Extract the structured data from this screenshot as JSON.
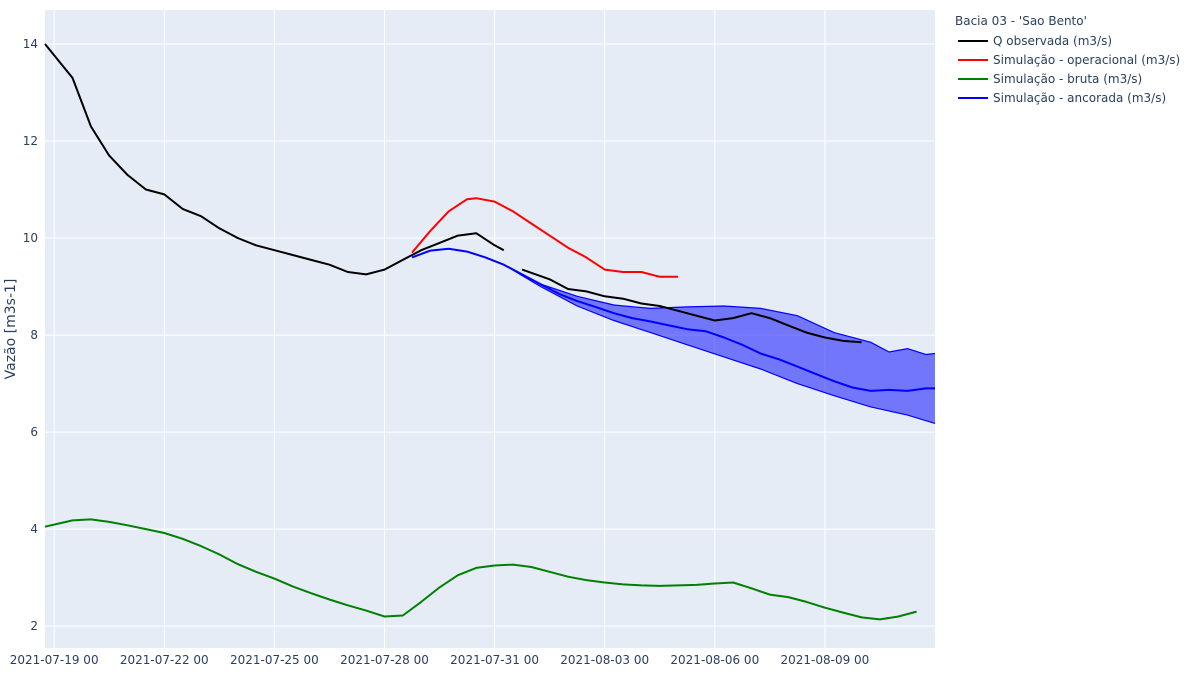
{
  "chart_data": {
    "type": "line",
    "ylabel": "Vazão [m3s-1]",
    "xlabel": "",
    "xlim": [
      "2021-07-18 18:00",
      "2021-08-12 00:00"
    ],
    "ylim": [
      1.55,
      14.7
    ],
    "x_ticks": [
      "2021-07-19 00",
      "2021-07-22 00",
      "2021-07-25 00",
      "2021-07-28 00",
      "2021-07-31 00",
      "2021-08-03 00",
      "2021-08-06 00",
      "2021-08-09 00"
    ],
    "y_ticks": [
      2,
      4,
      6,
      8,
      10,
      12,
      14
    ],
    "grid": true,
    "plot_background": "#E5ECF6",
    "legend": {
      "title": "Bacia 03 - 'Sao Bento'",
      "placement": "top-right outside"
    },
    "series": [
      {
        "name": "Q observada (m3/s)",
        "color": "#000000",
        "x": [
          "2021-07-18 18:00",
          "2021-07-19 12:00",
          "2021-07-20 00:00",
          "2021-07-20 12:00",
          "2021-07-21 00:00",
          "2021-07-21 12:00",
          "2021-07-22 00:00",
          "2021-07-22 12:00",
          "2021-07-23 00:00",
          "2021-07-23 12:00",
          "2021-07-24 00:00",
          "2021-07-24 12:00",
          "2021-07-25 00:00",
          "2021-07-25 12:00",
          "2021-07-26 00:00",
          "2021-07-26 12:00",
          "2021-07-27 00:00",
          "2021-07-27 12:00",
          "2021-07-28 00:00",
          "2021-07-28 12:00",
          "2021-07-29 00:00",
          "2021-07-29 12:00",
          "2021-07-30 00:00",
          "2021-07-30 12:00",
          "2021-07-31 00:00",
          "2021-07-31 06:00"
        ],
        "y": [
          14.0,
          13.3,
          12.3,
          11.7,
          11.3,
          11.0,
          10.9,
          10.6,
          10.45,
          10.2,
          10.0,
          9.85,
          9.75,
          9.65,
          9.55,
          9.45,
          9.3,
          9.25,
          9.35,
          9.55,
          9.75,
          9.9,
          10.05,
          10.1,
          9.85,
          9.75
        ]
      },
      {
        "name": "",
        "color": "#000000",
        "x": [
          "2021-07-31 18:00",
          "2021-08-01 12:00",
          "2021-08-02 00:00",
          "2021-08-02 12:00",
          "2021-08-03 00:00",
          "2021-08-03 12:00",
          "2021-08-04 00:00",
          "2021-08-04 12:00",
          "2021-08-05 00:00",
          "2021-08-05 12:00",
          "2021-08-06 00:00",
          "2021-08-06 12:00",
          "2021-08-07 00:00",
          "2021-08-07 12:00",
          "2021-08-08 00:00",
          "2021-08-08 12:00",
          "2021-08-09 00:00",
          "2021-08-09 12:00",
          "2021-08-10 00:00"
        ],
        "y": [
          9.35,
          9.15,
          8.95,
          8.9,
          8.8,
          8.75,
          8.65,
          8.6,
          8.5,
          8.4,
          8.3,
          8.35,
          8.45,
          8.35,
          8.2,
          8.05,
          7.95,
          7.88,
          7.85
        ]
      },
      {
        "name": "Simulação - operacional (m3/s)",
        "color": "#FF0000",
        "x": [
          "2021-07-28 18:00",
          "2021-07-29 06:00",
          "2021-07-29 18:00",
          "2021-07-30 06:00",
          "2021-07-30 12:00",
          "2021-07-31 00:00",
          "2021-07-31 12:00",
          "2021-08-01 00:00",
          "2021-08-01 12:00",
          "2021-08-02 00:00",
          "2021-08-02 12:00",
          "2021-08-03 00:00",
          "2021-08-03 12:00",
          "2021-08-04 00:00",
          "2021-08-04 12:00",
          "2021-08-05 00:00"
        ],
        "y": [
          9.7,
          10.15,
          10.55,
          10.8,
          10.82,
          10.75,
          10.55,
          10.3,
          10.05,
          9.8,
          9.6,
          9.35,
          9.3,
          9.3,
          9.2,
          9.2
        ]
      },
      {
        "name": "Simulação - bruta (m3/s)",
        "color": "#008000",
        "x": [
          "2021-07-18 18:00",
          "2021-07-19 12:00",
          "2021-07-20 00:00",
          "2021-07-20 12:00",
          "2021-07-21 00:00",
          "2021-07-21 12:00",
          "2021-07-22 00:00",
          "2021-07-22 12:00",
          "2021-07-23 00:00",
          "2021-07-23 12:00",
          "2021-07-24 00:00",
          "2021-07-24 12:00",
          "2021-07-25 00:00",
          "2021-07-25 12:00",
          "2021-07-26 00:00",
          "2021-07-26 12:00",
          "2021-07-27 00:00",
          "2021-07-27 12:00",
          "2021-07-28 00:00",
          "2021-07-28 12:00",
          "2021-07-29 00:00",
          "2021-07-29 12:00",
          "2021-07-30 00:00",
          "2021-07-30 12:00",
          "2021-07-31 00:00",
          "2021-07-31 12:00",
          "2021-08-01 00:00",
          "2021-08-01 12:00",
          "2021-08-02 00:00",
          "2021-08-02 12:00",
          "2021-08-03 00:00",
          "2021-08-03 12:00",
          "2021-08-04 00:00",
          "2021-08-04 12:00",
          "2021-08-05 00:00",
          "2021-08-05 12:00",
          "2021-08-06 00:00",
          "2021-08-06 12:00",
          "2021-08-07 00:00",
          "2021-08-07 12:00",
          "2021-08-08 00:00",
          "2021-08-08 12:00",
          "2021-08-09 00:00",
          "2021-08-09 12:00",
          "2021-08-10 00:00",
          "2021-08-10 12:00",
          "2021-08-11 00:00",
          "2021-08-11 12:00"
        ],
        "y": [
          4.05,
          4.18,
          4.2,
          4.15,
          4.08,
          4.0,
          3.92,
          3.8,
          3.65,
          3.48,
          3.28,
          3.12,
          2.98,
          2.82,
          2.68,
          2.55,
          2.43,
          2.32,
          2.2,
          2.22,
          2.5,
          2.8,
          3.05,
          3.2,
          3.25,
          3.27,
          3.22,
          3.12,
          3.02,
          2.95,
          2.9,
          2.86,
          2.84,
          2.83,
          2.84,
          2.85,
          2.88,
          2.9,
          2.78,
          2.65,
          2.6,
          2.5,
          2.38,
          2.28,
          2.18,
          2.14,
          2.2,
          2.3
        ]
      },
      {
        "name": "Simulação - ancorada (m3/s)",
        "color": "#0000FF",
        "x": [
          "2021-07-28 18:00",
          "2021-07-29 06:00",
          "2021-07-29 18:00",
          "2021-07-30 06:00",
          "2021-07-30 18:00",
          "2021-07-31 06:00",
          "2021-07-31 18:00",
          "2021-08-01 06:00",
          "2021-08-01 18:00",
          "2021-08-02 06:00",
          "2021-08-02 18:00",
          "2021-08-03 06:00",
          "2021-08-03 18:00",
          "2021-08-04 06:00",
          "2021-08-04 18:00",
          "2021-08-05 06:00",
          "2021-08-05 18:00",
          "2021-08-06 06:00",
          "2021-08-06 18:00",
          "2021-08-07 06:00",
          "2021-08-07 18:00",
          "2021-08-08 06:00",
          "2021-08-08 18:00",
          "2021-08-09 06:00",
          "2021-08-09 18:00",
          "2021-08-10 06:00",
          "2021-08-10 18:00",
          "2021-08-11 06:00",
          "2021-08-11 18:00",
          "2021-08-12 00:00"
        ],
        "y": [
          9.6,
          9.74,
          9.78,
          9.72,
          9.6,
          9.45,
          9.25,
          9.05,
          8.85,
          8.7,
          8.58,
          8.45,
          8.35,
          8.28,
          8.2,
          8.12,
          8.08,
          7.95,
          7.8,
          7.62,
          7.5,
          7.35,
          7.2,
          7.05,
          6.92,
          6.85,
          6.87,
          6.85,
          6.9,
          6.9
        ]
      }
    ],
    "band": {
      "color": "#0000FF",
      "opacity": 0.5,
      "x_upper": [
        "2021-07-31 06:00",
        "2021-08-01 06:00",
        "2021-08-02 06:00",
        "2021-08-03 06:00",
        "2021-08-04 06:00",
        "2021-08-05 06:00",
        "2021-08-06 06:00",
        "2021-08-07 06:00",
        "2021-08-08 06:00",
        "2021-08-09 06:00",
        "2021-08-10 06:00",
        "2021-08-10 18:00",
        "2021-08-11 06:00",
        "2021-08-11 18:00",
        "2021-08-12 00:00"
      ],
      "y_upper": [
        9.45,
        9.05,
        8.8,
        8.62,
        8.55,
        8.58,
        8.6,
        8.55,
        8.4,
        8.05,
        7.85,
        7.65,
        7.72,
        7.6,
        7.62
      ],
      "x_lower": [
        "2021-07-31 06:00",
        "2021-08-01 06:00",
        "2021-08-02 06:00",
        "2021-08-03 06:00",
        "2021-08-04 06:00",
        "2021-08-05 06:00",
        "2021-08-06 06:00",
        "2021-08-07 06:00",
        "2021-08-08 06:00",
        "2021-08-09 06:00",
        "2021-08-10 06:00",
        "2021-08-11 06:00",
        "2021-08-12 00:00"
      ],
      "y_lower": [
        9.45,
        9.0,
        8.6,
        8.3,
        8.05,
        7.8,
        7.55,
        7.3,
        7.0,
        6.75,
        6.52,
        6.35,
        6.18
      ]
    }
  }
}
